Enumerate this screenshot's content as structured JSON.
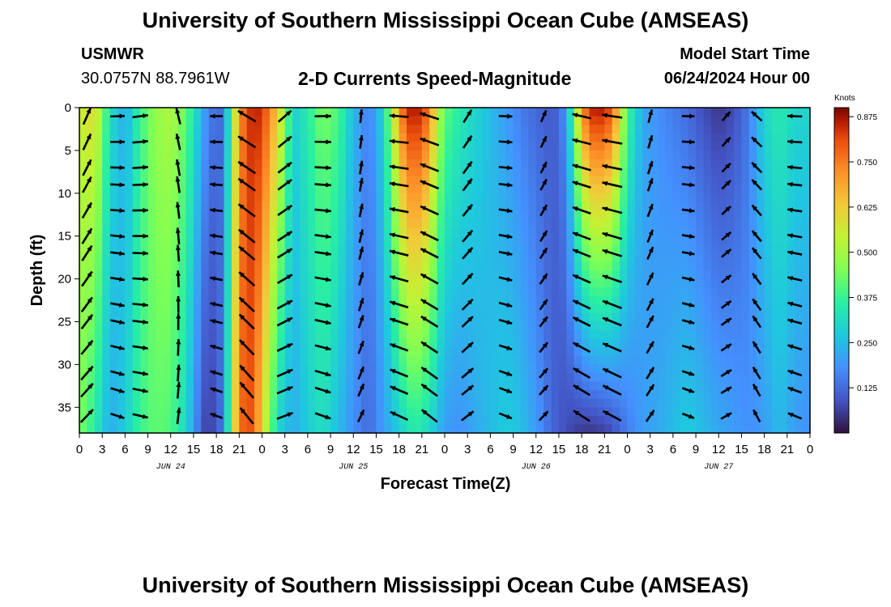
{
  "header": {
    "title_top": "University of Southern Mississippi Ocean Cube (AMSEAS)",
    "title_bottom": "University of Southern Mississippi Ocean Cube (AMSEAS)",
    "station": "USMWR",
    "coords": "30.0757N  88.7961W",
    "subtitle": "2-D Currents Speed-Magnitude",
    "model_start_label": "Model Start Time",
    "model_start_value": "06/24/2024 Hour 00"
  },
  "chart_data": {
    "type": "heatmap",
    "title": "2-D Currents Speed-Magnitude",
    "xlabel": "Forecast Time(Z)",
    "ylabel": "Depth (ft)",
    "x_tick_labels": [
      "0",
      "3",
      "6",
      "9",
      "12",
      "15",
      "18",
      "21",
      "0",
      "3",
      "6",
      "9",
      "12",
      "15",
      "18",
      "21",
      "0",
      "3",
      "6",
      "9",
      "12",
      "15",
      "18",
      "21",
      "0",
      "3",
      "6",
      "9",
      "12",
      "15",
      "18",
      "21",
      "0"
    ],
    "x_range_hours": [
      0,
      96
    ],
    "day_labels": [
      {
        "text": "JUN 24",
        "hour": 12
      },
      {
        "text": "JUN 25",
        "hour": 36
      },
      {
        "text": "JUN 26",
        "hour": 60
      },
      {
        "text": "JUN 27",
        "hour": 84
      }
    ],
    "y_ticks": [
      0,
      5,
      10,
      15,
      20,
      25,
      30,
      35
    ],
    "y_range": [
      0,
      38
    ],
    "colorbar": {
      "label": "Knots",
      "ticks": [
        "0.875",
        "0.750",
        "0.625",
        "0.500",
        "0.375",
        "0.250",
        "0.125"
      ],
      "range": [
        0.0,
        0.9
      ]
    },
    "speed_profile_surface": [
      [
        0,
        0.55
      ],
      [
        2,
        0.6
      ],
      [
        4,
        0.32
      ],
      [
        6,
        0.22
      ],
      [
        8,
        0.38
      ],
      [
        10,
        0.48
      ],
      [
        12,
        0.52
      ],
      [
        14,
        0.42
      ],
      [
        16,
        0.25
      ],
      [
        17,
        0.15
      ],
      [
        19,
        0.12
      ],
      [
        20,
        0.45
      ],
      [
        21,
        0.7
      ],
      [
        22,
        0.82
      ],
      [
        23,
        0.86
      ],
      [
        24,
        0.84
      ],
      [
        25,
        0.75
      ],
      [
        27,
        0.5
      ],
      [
        28,
        0.28
      ],
      [
        30,
        0.35
      ],
      [
        32,
        0.45
      ],
      [
        34,
        0.4
      ],
      [
        36,
        0.25
      ],
      [
        38,
        0.15
      ],
      [
        40,
        0.3
      ],
      [
        42,
        0.7
      ],
      [
        43,
        0.85
      ],
      [
        44,
        0.88
      ],
      [
        45,
        0.85
      ],
      [
        46,
        0.75
      ],
      [
        47,
        0.55
      ],
      [
        48,
        0.42
      ],
      [
        50,
        0.35
      ],
      [
        52,
        0.3
      ],
      [
        54,
        0.25
      ],
      [
        56,
        0.2
      ],
      [
        58,
        0.15
      ],
      [
        60,
        0.12
      ],
      [
        62,
        0.1
      ],
      [
        63,
        0.12
      ],
      [
        64,
        0.2
      ],
      [
        66,
        0.7
      ],
      [
        67,
        0.85
      ],
      [
        68,
        0.88
      ],
      [
        69,
        0.86
      ],
      [
        70,
        0.8
      ],
      [
        71,
        0.6
      ],
      [
        72,
        0.4
      ],
      [
        74,
        0.22
      ],
      [
        76,
        0.18
      ],
      [
        78,
        0.15
      ],
      [
        80,
        0.12
      ],
      [
        82,
        0.08
      ],
      [
        84,
        0.05
      ],
      [
        86,
        0.08
      ],
      [
        88,
        0.15
      ],
      [
        90,
        0.3
      ],
      [
        92,
        0.35
      ],
      [
        94,
        0.3
      ],
      [
        96,
        0.3
      ]
    ],
    "speed_profile_bottom": [
      [
        0,
        0.45
      ],
      [
        2,
        0.35
      ],
      [
        4,
        0.22
      ],
      [
        6,
        0.28
      ],
      [
        8,
        0.38
      ],
      [
        10,
        0.42
      ],
      [
        12,
        0.4
      ],
      [
        14,
        0.3
      ],
      [
        16,
        0.1
      ],
      [
        17,
        0.05
      ],
      [
        19,
        0.15
      ],
      [
        20,
        0.5
      ],
      [
        21,
        0.75
      ],
      [
        22,
        0.82
      ],
      [
        23,
        0.78
      ],
      [
        24,
        0.6
      ],
      [
        26,
        0.3
      ],
      [
        28,
        0.22
      ],
      [
        30,
        0.28
      ],
      [
        32,
        0.32
      ],
      [
        34,
        0.25
      ],
      [
        36,
        0.18
      ],
      [
        38,
        0.12
      ],
      [
        40,
        0.2
      ],
      [
        42,
        0.28
      ],
      [
        44,
        0.35
      ],
      [
        46,
        0.3
      ],
      [
        48,
        0.2
      ],
      [
        50,
        0.18
      ],
      [
        52,
        0.22
      ],
      [
        54,
        0.25
      ],
      [
        56,
        0.28
      ],
      [
        58,
        0.26
      ],
      [
        60,
        0.2
      ],
      [
        62,
        0.12
      ],
      [
        64,
        0.08
      ],
      [
        66,
        0.05
      ],
      [
        68,
        0.05
      ],
      [
        70,
        0.08
      ],
      [
        72,
        0.15
      ],
      [
        74,
        0.2
      ],
      [
        76,
        0.22
      ],
      [
        78,
        0.25
      ],
      [
        80,
        0.28
      ],
      [
        82,
        0.25
      ],
      [
        84,
        0.22
      ],
      [
        86,
        0.2
      ],
      [
        88,
        0.18
      ],
      [
        90,
        0.2
      ],
      [
        92,
        0.25
      ],
      [
        94,
        0.2
      ],
      [
        96,
        0.18
      ]
    ],
    "vector_rows_depth_ft": [
      1,
      4,
      7,
      9,
      12,
      15,
      17,
      20,
      23,
      25,
      28,
      31,
      33,
      36
    ],
    "vector_columns_hour": [
      1,
      5,
      8,
      13,
      18,
      22,
      27,
      32,
      37,
      42,
      46,
      51,
      56,
      61,
      66,
      70,
      75,
      80,
      85,
      89,
      94
    ]
  }
}
